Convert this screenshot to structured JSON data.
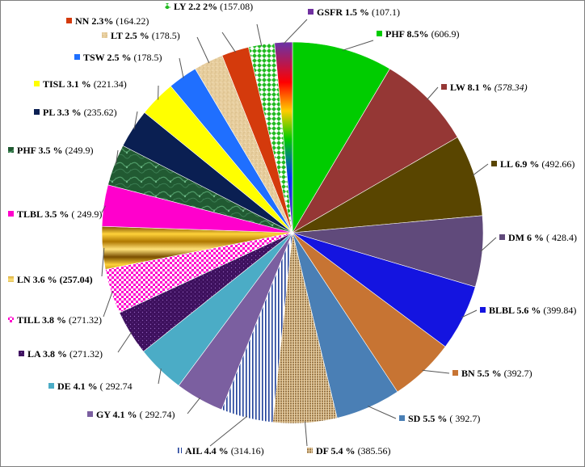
{
  "chart_data": {
    "type": "pie",
    "title": "",
    "legend": "labels-around-pie",
    "slices": [
      {
        "label": "PHF 8.5%",
        "value_text": " (606.9)",
        "value": 606.9,
        "percent": 8.5,
        "color": "#00cc00",
        "italic": false,
        "pattern": "solid"
      },
      {
        "label": "LW 8.1 %",
        "value_text": " (578.34)",
        "value": 578.34,
        "percent": 8.1,
        "color": "#953735",
        "italic": true,
        "pattern": "solid"
      },
      {
        "label": "LL 6.9 %",
        "value_text": " (492.66)",
        "value": 492.66,
        "percent": 6.9,
        "color": "#594500",
        "italic": false,
        "pattern": "solid"
      },
      {
        "label": "DM 6 %",
        "value_text": " ( 428.4)",
        "value": 428.4,
        "percent": 6.0,
        "color": "#604a7b",
        "italic": false,
        "pattern": "solid"
      },
      {
        "label": "BLBL 5.6 %",
        "value_text": " (399.84)",
        "value": 399.84,
        "percent": 5.6,
        "color": "#1414e0",
        "italic": false,
        "pattern": "solid"
      },
      {
        "label": "BN 5.5 %",
        "value_text": "  (392.7)",
        "value": 392.7,
        "percent": 5.5,
        "color": "#c77433",
        "italic": false,
        "pattern": "solid"
      },
      {
        "label": "SD 5.5 %",
        "value_text": " ( 392.7)",
        "value": 392.7,
        "percent": 5.5,
        "color": "#4a7fb5",
        "italic": false,
        "pattern": "solid"
      },
      {
        "label": "DF 5.4 %",
        "value_text": " (385.56)",
        "value": 385.56,
        "percent": 5.4,
        "color": "#c8a673",
        "italic": false,
        "pattern": "weave"
      },
      {
        "label": "AIL 4.4 %",
        "value_text": " (314.16)",
        "value": 314.16,
        "percent": 4.4,
        "color": "#1f3f99",
        "italic": false,
        "pattern": "vstripes"
      },
      {
        "label": "GY 4.1 %",
        "value_text": " ( 292.74)",
        "value": 292.74,
        "percent": 4.1,
        "color": "#7b5fa0",
        "italic": false,
        "pattern": "solid"
      },
      {
        "label": "DE 4.1 %",
        "value_text": " ( 292.74",
        "value": 292.74,
        "percent": 4.1,
        "color": "#4bacc6",
        "italic": false,
        "pattern": "solid"
      },
      {
        "label": "LA 3.8 %",
        "value_text": " (271.32)",
        "value": 271.32,
        "percent": 3.8,
        "color": "#3c0f5c",
        "italic": false,
        "pattern": "dots"
      },
      {
        "label": "TILL 3.8 %",
        "value_text": "  (271.32)",
        "value": 271.32,
        "percent": 3.8,
        "color": "#ff00cc",
        "italic": false,
        "pattern": "checker"
      },
      {
        "label": "LN 3.6 % (257.04)",
        "value_text": "",
        "value": 257.04,
        "percent": 3.6,
        "color": "#c48a00",
        "italic": false,
        "pattern": "hgradient"
      },
      {
        "label": "TLBL 3.5 %",
        "value_text": " ( 249.9)",
        "value": 249.9,
        "percent": 3.5,
        "color": "#ff00cc",
        "italic": false,
        "pattern": "solid"
      },
      {
        "label": "PHF 3.5 %",
        "value_text": " (249.9)",
        "value": 249.9,
        "percent": 3.5,
        "color": "#215a32",
        "italic": false,
        "pattern": "marble"
      },
      {
        "label": "PL 3.3 %",
        "value_text": " (235.62)",
        "value": 235.62,
        "percent": 3.3,
        "color": "#0a1f52",
        "italic": false,
        "pattern": "solid"
      },
      {
        "label": "TISL 3.1 %",
        "value_text": " (221.34)",
        "value": 221.34,
        "percent": 3.1,
        "color": "#ffff00",
        "italic": false,
        "pattern": "solid"
      },
      {
        "label": "TSW 2.5 %",
        "value_text": " (178.5)",
        "value": 178.5,
        "percent": 2.5,
        "color": "#1f6fff",
        "italic": false,
        "pattern": "solid"
      },
      {
        "label": "LT 2.5 %",
        "value_text": " (178.5)",
        "value": 178.5,
        "percent": 2.5,
        "color": "#e8cfa0",
        "italic": false,
        "pattern": "sand"
      },
      {
        "label": "NN 2.3%",
        "value_text": " (164.22)",
        "value": 164.22,
        "percent": 2.3,
        "color": "#d43a0c",
        "italic": false,
        "pattern": "solid"
      },
      {
        "label": "LY 2.2 2%",
        "value_text": " (157.08)",
        "value": 157.08,
        "percent": 2.2,
        "color": "#22bb22",
        "italic": false,
        "pattern": "diamonds"
      },
      {
        "label": "GSFR 1.5 %",
        "value_text": " (107.1)",
        "value": 107.1,
        "percent": 1.5,
        "color": "#7030a0",
        "italic": false,
        "pattern": "rainbow"
      }
    ]
  }
}
